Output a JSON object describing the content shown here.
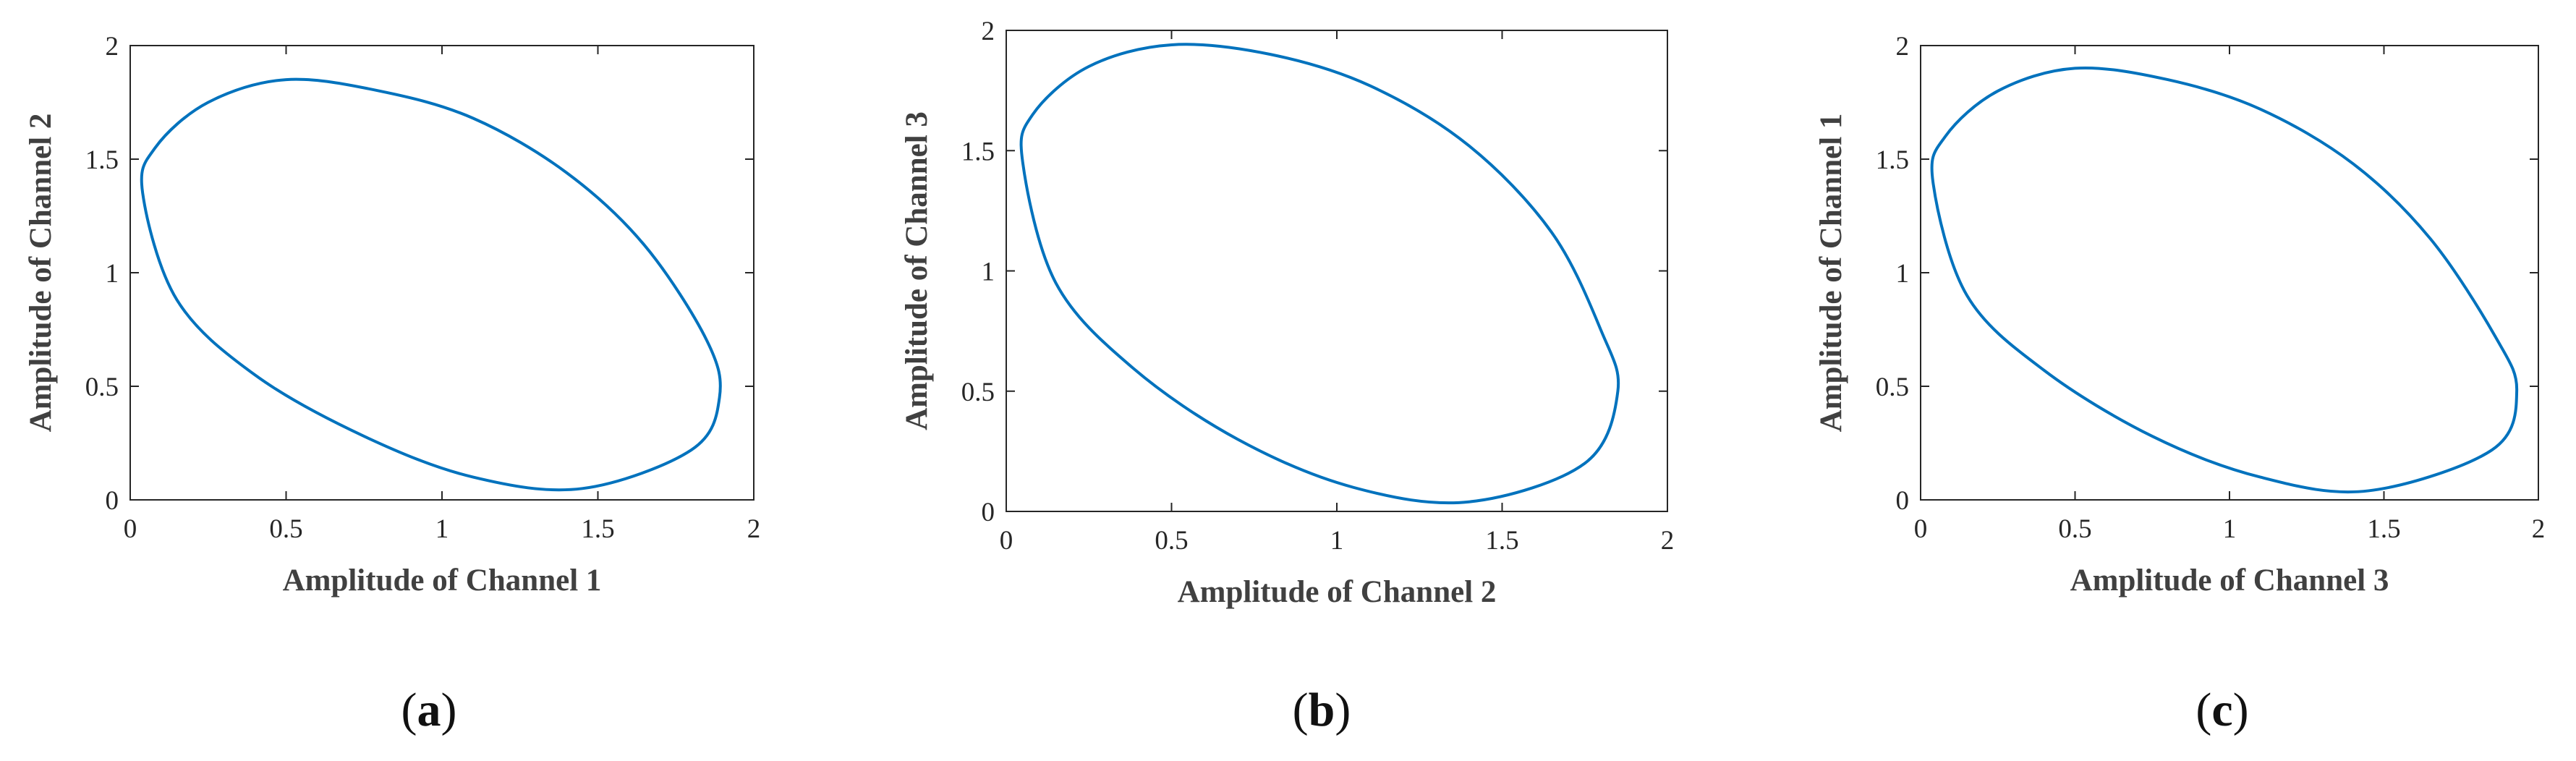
{
  "figure": {
    "panels": [
      {
        "caption_letter": "a"
      },
      {
        "caption_letter": "b"
      },
      {
        "caption_letter": "c"
      }
    ]
  },
  "colors": {
    "curve": "#0072BD",
    "axes": "#262626",
    "background": "#ffffff"
  },
  "chart_data": [
    {
      "type": "line",
      "xlabel": "Amplitude of Channel 1",
      "ylabel": "Amplitude of Channel 2",
      "xlim": [
        0,
        2
      ],
      "ylim": [
        0,
        2
      ],
      "xticks": [
        "0",
        "0.5",
        "1",
        "1.5",
        "2"
      ],
      "yticks": [
        "0",
        "0.5",
        "1",
        "1.5",
        "2"
      ],
      "grid": false,
      "series": [
        {
          "x": [
            0.5,
            0.8,
            1.1,
            1.4,
            1.65,
            1.85,
            1.89,
            1.8,
            1.45,
            1.1,
            0.75,
            0.4,
            0.15,
            0.04,
            0.08,
            0.25,
            0.5
          ],
          "y": [
            1.85,
            1.8,
            1.68,
            1.44,
            1.12,
            0.7,
            0.45,
            0.22,
            0.05,
            0.1,
            0.28,
            0.55,
            0.88,
            1.35,
            1.55,
            1.75,
            1.85
          ]
        }
      ]
    },
    {
      "type": "line",
      "xlabel": "Amplitude of Channel 2",
      "ylabel": "Amplitude of Channel 3",
      "xlim": [
        0,
        2
      ],
      "ylim": [
        0,
        2
      ],
      "xticks": [
        "0",
        "0.5",
        "1",
        "1.5",
        "2"
      ],
      "yticks": [
        "0",
        "0.5",
        "1",
        "1.5",
        "2"
      ],
      "grid": false,
      "series": [
        {
          "x": [
            0.5,
            0.8,
            1.1,
            1.4,
            1.65,
            1.8,
            1.85,
            1.75,
            1.4,
            1.05,
            0.7,
            0.38,
            0.15,
            0.05,
            0.08,
            0.25,
            0.5
          ],
          "y": [
            1.94,
            1.9,
            1.77,
            1.52,
            1.16,
            0.75,
            0.5,
            0.2,
            0.04,
            0.1,
            0.3,
            0.6,
            0.95,
            1.45,
            1.65,
            1.85,
            1.94
          ]
        }
      ]
    },
    {
      "type": "line",
      "xlabel": "Amplitude of Channel 3",
      "ylabel": "Amplitude of Channel 1",
      "xlim": [
        0,
        2
      ],
      "ylim": [
        0,
        2
      ],
      "xticks": [
        "0",
        "0.5",
        "1",
        "1.5",
        "2"
      ],
      "yticks": [
        "0",
        "0.5",
        "1",
        "1.5",
        "2"
      ],
      "grid": false,
      "series": [
        {
          "x": [
            0.5,
            0.8,
            1.1,
            1.4,
            1.65,
            1.86,
            1.93,
            1.85,
            1.45,
            1.1,
            0.75,
            0.4,
            0.15,
            0.04,
            0.08,
            0.25,
            0.5
          ],
          "y": [
            1.9,
            1.85,
            1.72,
            1.48,
            1.15,
            0.72,
            0.48,
            0.22,
            0.04,
            0.1,
            0.28,
            0.57,
            0.9,
            1.4,
            1.6,
            1.8,
            1.9
          ]
        }
      ]
    }
  ]
}
